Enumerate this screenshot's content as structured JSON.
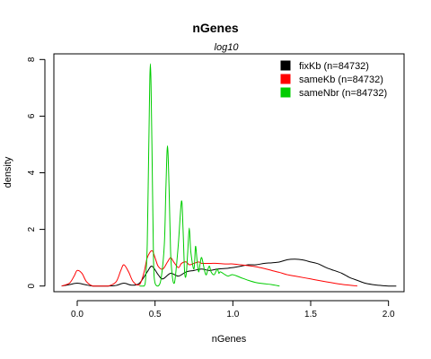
{
  "chart_data": {
    "type": "line",
    "title": "nGenes",
    "subtitle": "log10",
    "xlabel": "nGenes",
    "ylabel": "density",
    "xlim": [
      -0.15,
      2.1
    ],
    "ylim": [
      -0.2,
      8.2
    ],
    "xticks": [
      0.0,
      0.5,
      1.0,
      1.5,
      2.0
    ],
    "xtick_labels": [
      "0.0",
      "0.5",
      "1.0",
      "1.5",
      "2.0"
    ],
    "yticks": [
      0,
      2,
      4,
      6,
      8
    ],
    "ytick_labels": [
      "0",
      "2",
      "4",
      "6",
      "8"
    ],
    "grid": false,
    "legend_position": "top-right",
    "series": [
      {
        "name": "fixKb (n=84732)",
        "color": "#000000",
        "x": [
          -0.1,
          -0.05,
          0.0,
          0.05,
          0.1,
          0.2,
          0.25,
          0.3,
          0.35,
          0.4,
          0.45,
          0.48,
          0.52,
          0.55,
          0.6,
          0.65,
          0.7,
          0.75,
          0.8,
          0.85,
          0.9,
          0.95,
          1.0,
          1.05,
          1.1,
          1.15,
          1.2,
          1.25,
          1.3,
          1.35,
          1.4,
          1.45,
          1.5,
          1.55,
          1.6,
          1.65,
          1.7,
          1.75,
          1.8,
          1.85,
          1.9,
          1.95,
          2.0,
          2.05
        ],
        "y": [
          0.0,
          0.05,
          0.1,
          0.05,
          0.0,
          0.0,
          0.02,
          0.1,
          0.03,
          0.1,
          0.5,
          0.7,
          0.4,
          0.25,
          0.45,
          0.35,
          0.5,
          0.55,
          0.6,
          0.55,
          0.6,
          0.62,
          0.65,
          0.7,
          0.75,
          0.75,
          0.8,
          0.82,
          0.85,
          0.93,
          0.95,
          0.92,
          0.85,
          0.78,
          0.65,
          0.55,
          0.45,
          0.3,
          0.2,
          0.1,
          0.05,
          0.02,
          0.0,
          0.0
        ]
      },
      {
        "name": "sameKb (n=84732)",
        "color": "#ff0000",
        "x": [
          -0.1,
          -0.05,
          -0.02,
          0.0,
          0.03,
          0.06,
          0.1,
          0.15,
          0.2,
          0.25,
          0.28,
          0.3,
          0.33,
          0.36,
          0.4,
          0.43,
          0.45,
          0.48,
          0.5,
          0.52,
          0.55,
          0.58,
          0.6,
          0.62,
          0.65,
          0.67,
          0.7,
          0.72,
          0.75,
          0.78,
          0.8,
          0.83,
          0.86,
          0.9,
          0.95,
          1.0,
          1.05,
          1.1,
          1.15,
          1.2,
          1.25,
          1.3,
          1.35,
          1.4,
          1.5,
          1.6,
          1.7,
          1.75,
          1.8
        ],
        "y": [
          0.0,
          0.1,
          0.35,
          0.55,
          0.45,
          0.15,
          0.0,
          0.0,
          0.0,
          0.15,
          0.55,
          0.75,
          0.5,
          0.15,
          0.05,
          0.5,
          1.0,
          1.25,
          1.0,
          0.7,
          0.6,
          0.85,
          1.0,
          0.85,
          0.65,
          0.8,
          0.85,
          0.75,
          0.8,
          0.85,
          0.8,
          0.8,
          0.8,
          0.8,
          0.78,
          0.78,
          0.75,
          0.72,
          0.68,
          0.62,
          0.55,
          0.48,
          0.4,
          0.35,
          0.25,
          0.15,
          0.06,
          0.03,
          0.0
        ]
      },
      {
        "name": "sameNbr (n=84732)",
        "color": "#00cc00",
        "x": [
          0.4,
          0.43,
          0.44,
          0.45,
          0.46,
          0.47,
          0.48,
          0.49,
          0.5,
          0.52,
          0.54,
          0.56,
          0.57,
          0.58,
          0.59,
          0.6,
          0.61,
          0.62,
          0.63,
          0.65,
          0.67,
          0.68,
          0.69,
          0.7,
          0.71,
          0.72,
          0.73,
          0.75,
          0.76,
          0.77,
          0.78,
          0.79,
          0.8,
          0.82,
          0.83,
          0.84,
          0.85,
          0.86,
          0.88,
          0.9,
          0.91,
          0.92,
          0.95,
          0.97,
          1.0,
          1.05,
          1.1,
          1.15,
          1.2,
          1.25,
          1.3
        ],
        "y": [
          0.0,
          0.0,
          0.3,
          1.5,
          5.0,
          7.85,
          5.0,
          1.0,
          0.1,
          0.0,
          0.3,
          1.5,
          3.5,
          4.95,
          3.5,
          1.2,
          0.4,
          0.1,
          0.3,
          1.5,
          3.0,
          2.0,
          0.5,
          0.4,
          1.2,
          2.05,
          1.2,
          0.6,
          1.4,
          0.9,
          0.5,
          0.8,
          1.0,
          0.5,
          0.4,
          0.6,
          0.7,
          0.5,
          0.4,
          0.6,
          0.45,
          0.5,
          0.4,
          0.35,
          0.4,
          0.3,
          0.2,
          0.12,
          0.08,
          0.05,
          0.0
        ]
      }
    ]
  }
}
